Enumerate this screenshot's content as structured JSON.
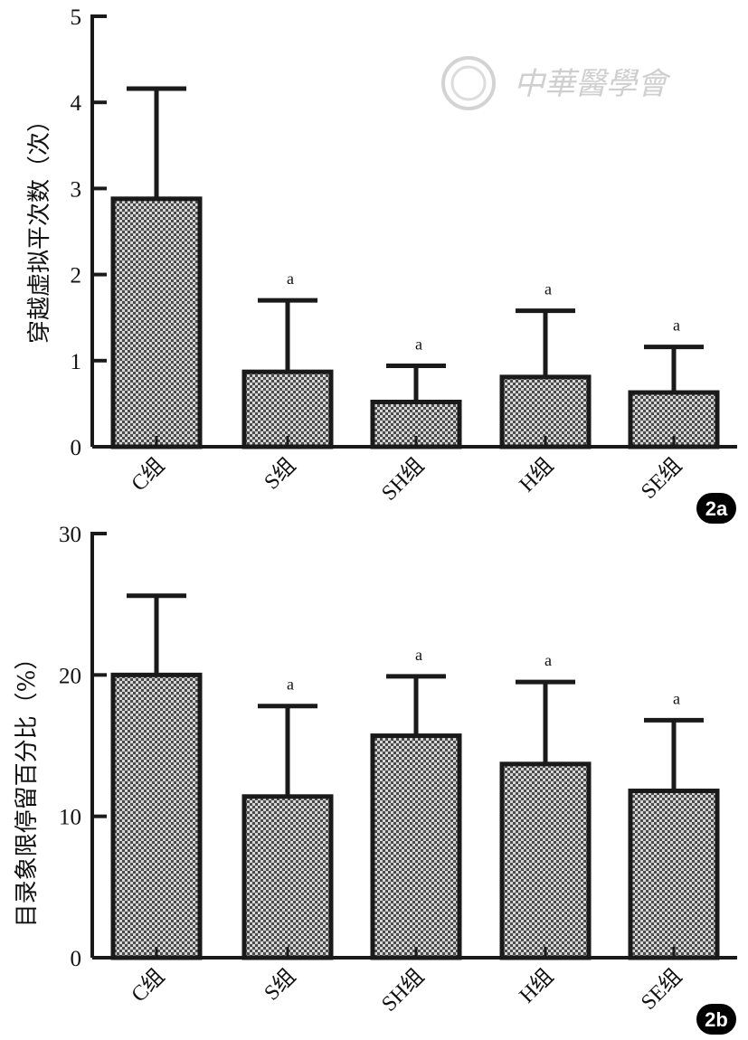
{
  "watermark": {
    "text": "中華醫學會"
  },
  "colors": {
    "bar_fill": "#c9c9c9",
    "bar_stroke": "#1a1a1a",
    "axis": "#1a1a1a",
    "badge": "#000000"
  },
  "chart_data": [
    {
      "type": "bar",
      "panel": "2a",
      "categories": [
        "C组",
        "S组",
        "SH组",
        "H组",
        "SE组"
      ],
      "values": [
        2.88,
        0.87,
        0.52,
        0.81,
        0.63
      ],
      "errors": [
        1.28,
        0.83,
        0.42,
        0.77,
        0.53
      ],
      "significance": [
        "",
        "a",
        "a",
        "a",
        "a"
      ],
      "ylabel": "穿越虚拟平次数（次）",
      "ylim": [
        0,
        5
      ],
      "yticks": [
        "0",
        "1",
        "2",
        "3",
        "4",
        "5"
      ],
      "xlabel": "",
      "grid": false
    },
    {
      "type": "bar",
      "panel": "2b",
      "categories": [
        "C组",
        "S组",
        "SH组",
        "H组",
        "SE组"
      ],
      "values": [
        20.0,
        11.4,
        15.7,
        13.7,
        11.8
      ],
      "errors": [
        5.6,
        6.4,
        4.2,
        5.8,
        5.0
      ],
      "significance": [
        "",
        "a",
        "a",
        "a",
        "a"
      ],
      "ylabel": "目录象限停留百分比（%）",
      "ylim": [
        0,
        30
      ],
      "yticks": [
        "0",
        "10",
        "20",
        "30"
      ],
      "xlabel": "",
      "grid": false
    }
  ]
}
